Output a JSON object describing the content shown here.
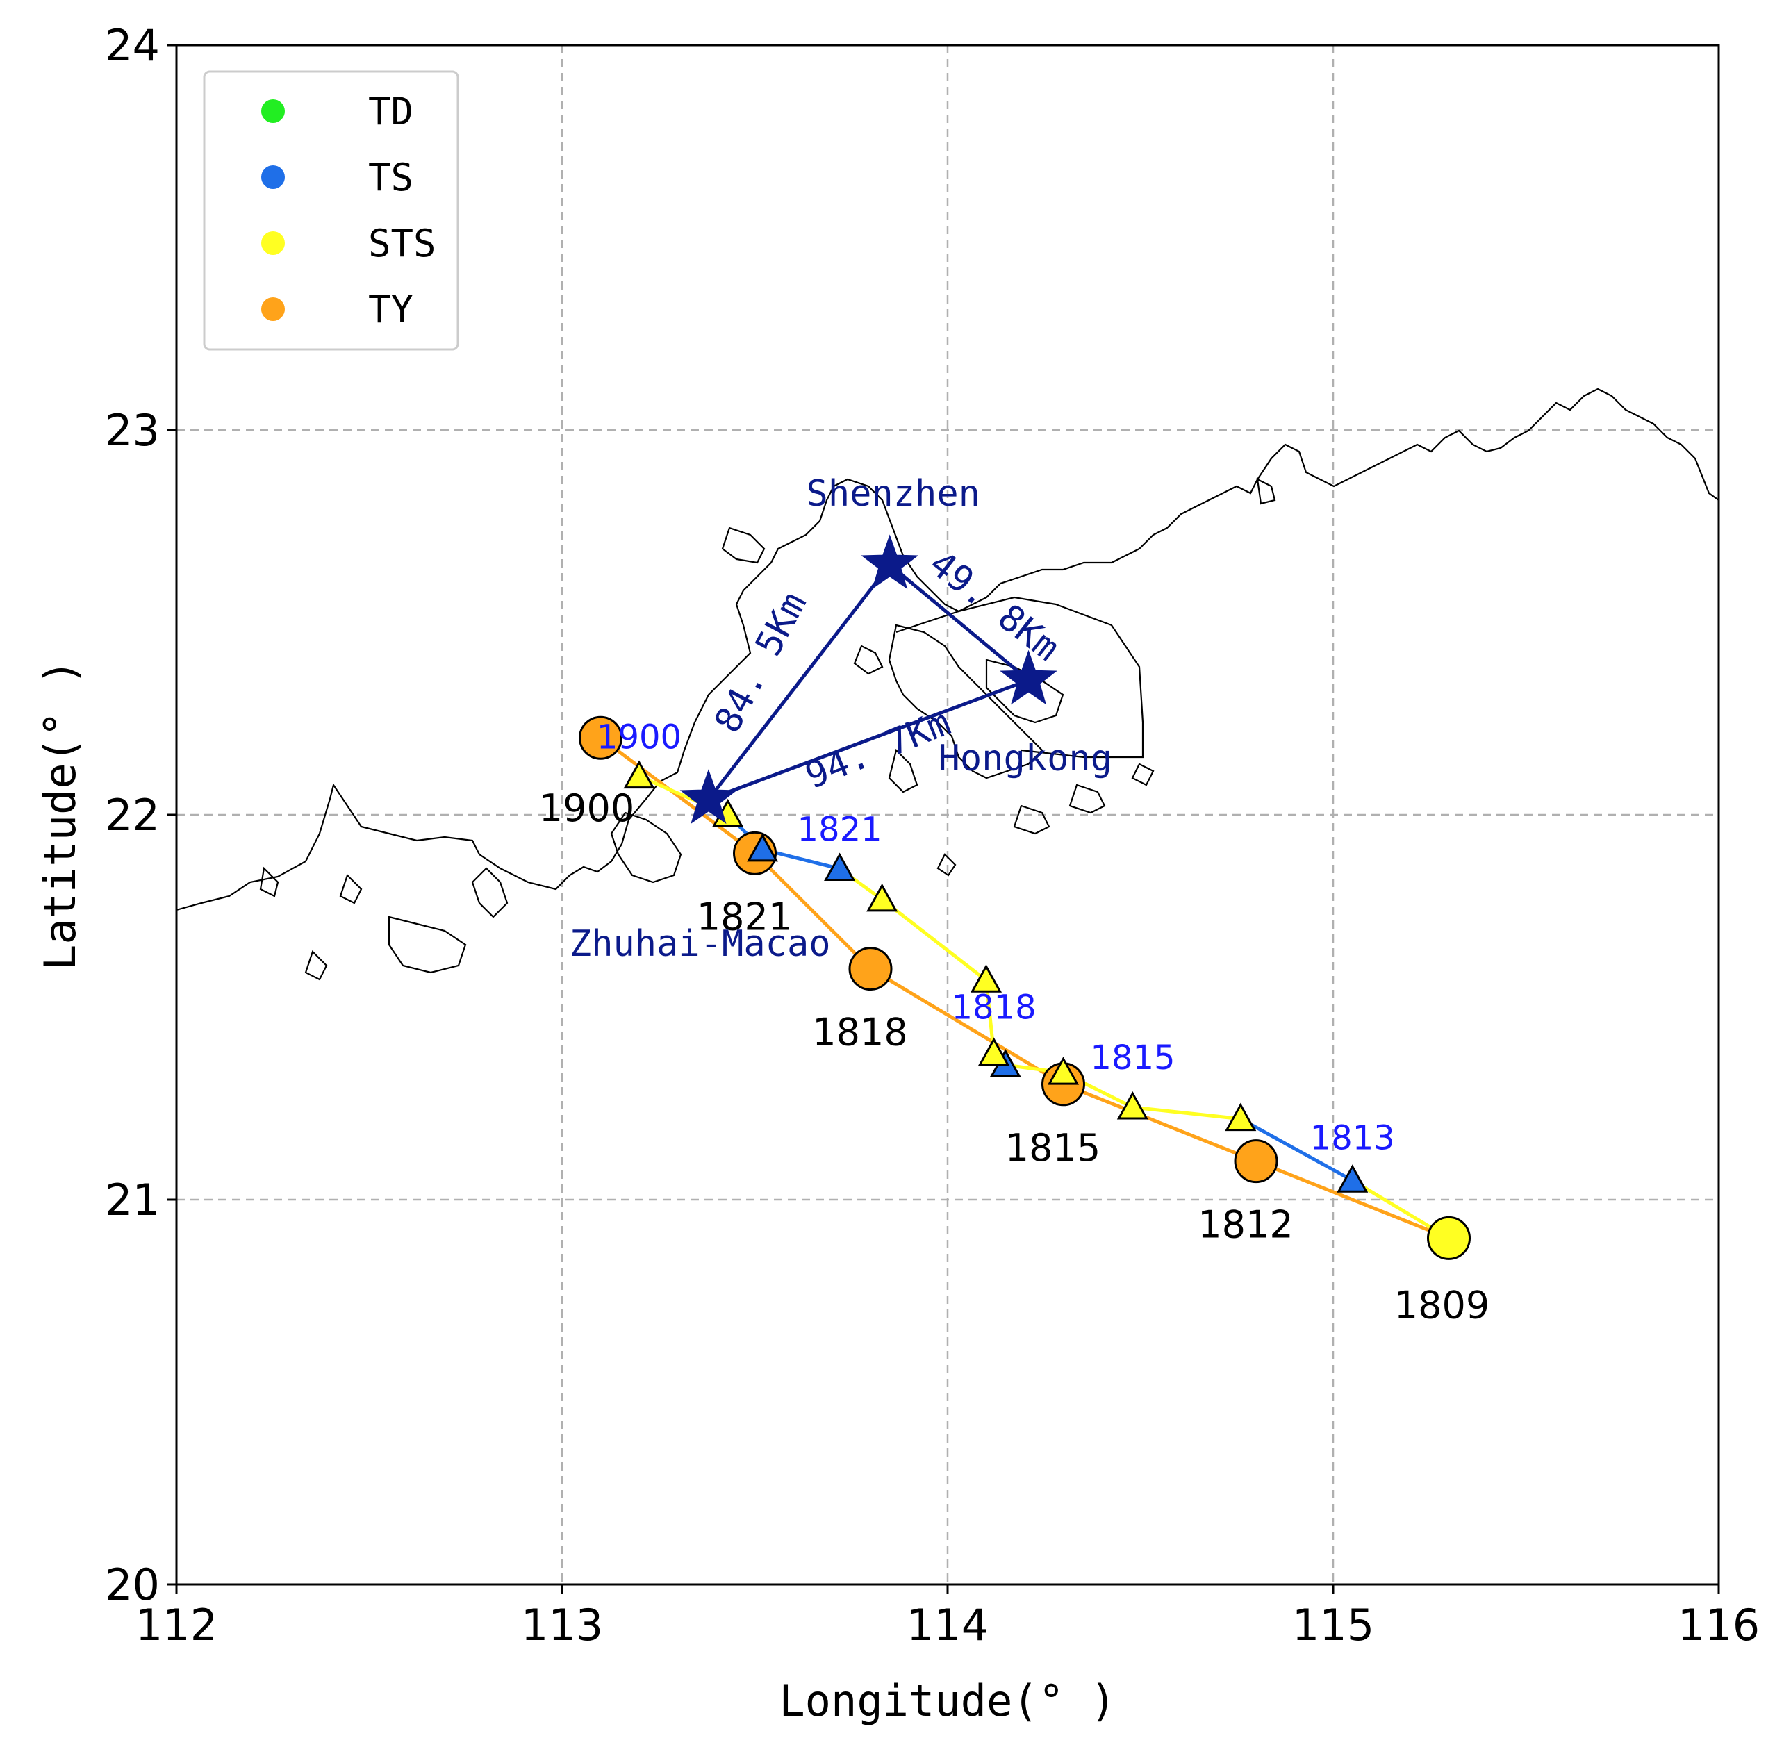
{
  "chart_data": {
    "type": "scatter",
    "xlabel": "Longitude(° )",
    "ylabel": "Latitude(° )",
    "xlim": [
      112,
      116
    ],
    "ylim": [
      20,
      24
    ],
    "xticks": [
      "112",
      "113",
      "114",
      "115",
      "116"
    ],
    "yticks": [
      "20",
      "21",
      "22",
      "23",
      "24"
    ],
    "grid": true,
    "legend_placement": "top-left",
    "legend": [
      {
        "label": "TD",
        "color": "#22ee22"
      },
      {
        "label": "TS",
        "color": "#1f6fe8"
      },
      {
        "label": "STS",
        "color": "#ffff22"
      },
      {
        "label": "TY",
        "color": "#ffa31a"
      }
    ],
    "cities": [
      {
        "name": "Shenzhen",
        "lon": 113.85,
        "lat": 22.65
      },
      {
        "name": "Hongkong",
        "lon": 114.21,
        "lat": 22.35
      },
      {
        "name": "Zhuhai-Macao",
        "lon": 113.38,
        "lat": 22.04
      }
    ],
    "distances": [
      {
        "label": "49. 8Km",
        "from": "Shenzhen",
        "to": "Hongkong"
      },
      {
        "label": "84. 5Km",
        "from": "Shenzhen",
        "to": "Zhuhai-Macao"
      },
      {
        "label": "94. 7Km",
        "from": "Hongkong",
        "to": "Zhuhai-Macao"
      }
    ],
    "series": [
      {
        "type": "line-circles",
        "line_color": "#ffa31a",
        "points": [
          {
            "lon": 115.3,
            "lat": 20.9,
            "color": "#ffff22",
            "label": "1809"
          },
          {
            "lon": 114.8,
            "lat": 21.1,
            "color": "#ffa31a",
            "label": "1812"
          },
          {
            "lon": 114.3,
            "lat": 21.3,
            "color": "#ffa31a",
            "label": "1815"
          },
          {
            "lon": 113.8,
            "lat": 21.6,
            "color": "#ffa31a",
            "label": "1818"
          },
          {
            "lon": 113.5,
            "lat": 21.9,
            "color": "#ffa31a",
            "label": "1821"
          },
          {
            "lon": 113.1,
            "lat": 22.2,
            "color": "#ffa31a",
            "label": "1900"
          }
        ]
      },
      {
        "type": "line-triangles",
        "line_color": "#ffff22",
        "points": [
          {
            "lon": 115.3,
            "lat": 20.9,
            "color": "#ffff22",
            "label": ""
          },
          {
            "lon": 115.05,
            "lat": 21.05,
            "color": "#1f6fe8",
            "label": "1813"
          },
          {
            "lon": 114.76,
            "lat": 21.21,
            "color": "#ffff22",
            "label": ""
          },
          {
            "lon": 114.48,
            "lat": 21.24,
            "color": "#ffff22",
            "label": ""
          },
          {
            "lon": 114.3,
            "lat": 21.33,
            "color": "#ffff22",
            "label": "1815"
          },
          {
            "lon": 114.15,
            "lat": 21.35,
            "color": "#1f6fe8",
            "label": ""
          },
          {
            "lon": 114.12,
            "lat": 21.38,
            "color": "#ffff22",
            "label": "1818"
          },
          {
            "lon": 114.1,
            "lat": 21.57,
            "color": "#ffff22",
            "label": ""
          },
          {
            "lon": 113.83,
            "lat": 21.78,
            "color": "#ffff22",
            "label": ""
          },
          {
            "lon": 113.72,
            "lat": 21.86,
            "color": "#1f6fe8",
            "label": "1821"
          },
          {
            "lon": 113.52,
            "lat": 21.91,
            "color": "#1f6fe8",
            "label": ""
          },
          {
            "lon": 113.43,
            "lat": 22.0,
            "color": "#ffff22",
            "label": ""
          },
          {
            "lon": 113.2,
            "lat": 22.1,
            "color": "#ffff22",
            "label": "1900"
          }
        ]
      }
    ]
  }
}
